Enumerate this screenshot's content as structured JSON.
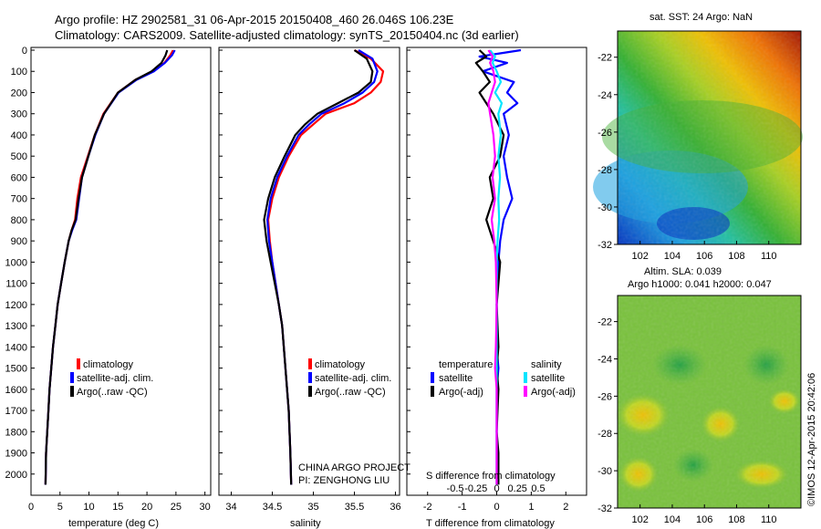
{
  "title_line1": "Argo profile: HZ 2902581_31 06-Apr-2015 20150408_460 26.046S 106.23E",
  "title_line2": "Climatology: CARS2009. Satellite-adjusted climatology: synTS_20150404.nc (3d earlier)",
  "depth_ticks": [
    0,
    100,
    200,
    300,
    400,
    500,
    600,
    700,
    800,
    900,
    1000,
    1100,
    1200,
    1300,
    1400,
    1500,
    1600,
    1700,
    1800,
    1900,
    2000
  ],
  "colors": {
    "climatology": "#ff0000",
    "satellite": "#0000ff",
    "argo": "#000000",
    "sat_sal": "#00e5ff",
    "argo_sal": "#ff00ff"
  },
  "panel1": {
    "xlabel": "temperature (deg C)",
    "xticks": [
      0,
      5,
      10,
      15,
      20,
      25,
      30
    ],
    "legend": [
      "climatology",
      "satellite-adj. clim.",
      "Argo(..raw -QC)"
    ]
  },
  "panel2": {
    "xlabel": "salinity",
    "xticks": [
      "34",
      "34.5",
      "35",
      "35.5",
      "36"
    ],
    "legend": [
      "climatology",
      "satellite-adj. clim.",
      "Argo(..raw -QC)"
    ],
    "annotation1": "CHINA ARGO PROJECT",
    "annotation2": "PI: ZENGHONG LIU"
  },
  "panel3": {
    "xlabel": "T difference from climatology",
    "xticks": [
      "-2",
      "-1",
      "0",
      "1",
      "2"
    ],
    "s_label": "S difference from climatology",
    "s_ticks": [
      "-0.5",
      "-0.25",
      "0",
      "0.25",
      "0.5"
    ],
    "legend_temp_title": "temperature",
    "legend_sal_title": "salinity",
    "legend_items": [
      "satellite",
      "Argo(-adj)",
      "satellite",
      "Argo(-adj)"
    ]
  },
  "map1": {
    "title": "sat. SST: 24 Argo: NaN",
    "yticks": [
      "-22",
      "-24",
      "-26",
      "-28",
      "-30",
      "-32"
    ],
    "xticks": [
      "102",
      "104",
      "106",
      "108",
      "110"
    ]
  },
  "map2": {
    "title1": "Altim. SLA: 0.039",
    "title2": "Argo h1000: 0.041 h2000: 0.047",
    "yticks": [
      "-22",
      "-24",
      "-26",
      "-28",
      "-30",
      "-32"
    ],
    "xticks": [
      "102",
      "104",
      "106",
      "108",
      "110"
    ]
  },
  "credit": "©IMOS 12-Apr-2015 20:42:06",
  "chart_data": [
    {
      "type": "line",
      "xlabel": "temperature (deg C)",
      "xlim": [
        0,
        31
      ],
      "ylim": [
        2100,
        0
      ],
      "series": [
        {
          "name": "climatology",
          "color": "#ff0000",
          "x": [
            24.5,
            24,
            23,
            21,
            18,
            15,
            12.5,
            11,
            9.8,
            8.6,
            8,
            7.6,
            7,
            6.5,
            5.8,
            5.2,
            4.6,
            4.2,
            3.8,
            3.5,
            3.2,
            3,
            2.8,
            2.6,
            2.5
          ],
          "y": [
            0,
            25,
            60,
            100,
            140,
            200,
            300,
            400,
            500,
            600,
            700,
            800,
            850,
            900,
            1000,
            1100,
            1200,
            1300,
            1400,
            1500,
            1600,
            1700,
            1800,
            1900,
            2050
          ]
        },
        {
          "name": "satellite-adj. clim.",
          "color": "#0000ff",
          "x": [
            24.8,
            24.3,
            23.1,
            21.2,
            18.2,
            15.1,
            12.6,
            11.1,
            9.9,
            8.8,
            8.3,
            7.8,
            7.1,
            6.5,
            5.8,
            5.2,
            4.6,
            4.2,
            3.8,
            3.5,
            3.2,
            3,
            2.8,
            2.6,
            2.5
          ],
          "y": [
            0,
            25,
            60,
            100,
            140,
            200,
            300,
            400,
            500,
            600,
            700,
            800,
            850,
            900,
            1000,
            1100,
            1200,
            1300,
            1400,
            1500,
            1600,
            1700,
            1800,
            1900,
            2050
          ]
        },
        {
          "name": "Argo(..raw -QC)",
          "color": "#000000",
          "x": [
            23.5,
            23.2,
            22.5,
            20.8,
            18,
            15,
            12.6,
            11,
            9.9,
            8.8,
            8.2,
            7.7,
            7,
            6.5,
            5.8,
            5.2,
            4.6,
            4.2,
            3.8,
            3.5,
            3.2,
            3,
            2.8,
            2.6,
            2.5
          ],
          "y": [
            0,
            25,
            60,
            100,
            140,
            200,
            300,
            400,
            500,
            600,
            700,
            800,
            850,
            900,
            1000,
            1100,
            1200,
            1300,
            1400,
            1500,
            1600,
            1700,
            1800,
            1900,
            2050
          ]
        }
      ]
    },
    {
      "type": "line",
      "xlabel": "salinity",
      "xlim": [
        33.85,
        36.05
      ],
      "ylim": [
        2100,
        0
      ],
      "series": [
        {
          "name": "climatology",
          "color": "#ff0000",
          "x": [
            35.5,
            35.7,
            35.85,
            35.82,
            35.7,
            35.5,
            35.15,
            35.0,
            34.85,
            34.7,
            34.58,
            34.5,
            34.45,
            34.47,
            34.5,
            34.54,
            34.58,
            34.62,
            34.64,
            34.66,
            34.68,
            34.7,
            34.71,
            34.72,
            34.73
          ],
          "y": [
            0,
            40,
            100,
            150,
            200,
            250,
            300,
            350,
            400,
            500,
            600,
            700,
            800,
            900,
            1000,
            1100,
            1200,
            1300,
            1400,
            1500,
            1600,
            1700,
            1800,
            1900,
            2050
          ]
        },
        {
          "name": "satellite-adj. clim.",
          "color": "#0000ff",
          "x": [
            35.55,
            35.72,
            35.78,
            35.74,
            35.6,
            35.38,
            35.1,
            34.95,
            34.82,
            34.68,
            34.56,
            34.48,
            34.44,
            34.46,
            34.5,
            34.54,
            34.58,
            34.62,
            34.64,
            34.66,
            34.68,
            34.7,
            34.71,
            34.72,
            34.73
          ],
          "y": [
            0,
            40,
            100,
            150,
            200,
            250,
            300,
            350,
            400,
            500,
            600,
            700,
            800,
            900,
            1000,
            1100,
            1200,
            1300,
            1400,
            1500,
            1600,
            1700,
            1800,
            1900,
            2050
          ]
        },
        {
          "name": "Argo(..raw -QC)",
          "color": "#000000",
          "x": [
            35.5,
            35.65,
            35.72,
            35.7,
            35.55,
            35.3,
            35.05,
            34.9,
            34.78,
            34.65,
            34.53,
            34.45,
            34.4,
            34.43,
            34.48,
            34.53,
            34.58,
            34.62,
            34.64,
            34.66,
            34.68,
            34.7,
            34.71,
            34.72,
            34.73
          ],
          "y": [
            0,
            40,
            100,
            150,
            200,
            250,
            300,
            350,
            400,
            500,
            600,
            700,
            800,
            900,
            1000,
            1100,
            1200,
            1300,
            1400,
            1500,
            1600,
            1700,
            1800,
            1900,
            2050
          ]
        }
      ]
    },
    {
      "type": "line",
      "xlabel": "T difference from climatology",
      "xlim": [
        -2.6,
        2.6
      ],
      "ylim": [
        2100,
        0
      ],
      "series": [
        {
          "name": "temperature satellite",
          "color": "#0000ff",
          "x": [
            0.7,
            -0.5,
            0.3,
            -0.4,
            0.5,
            0.3,
            0.6,
            0.2,
            0.35,
            0.2,
            0.3,
            0.45,
            0.2,
            0.1,
            0.05,
            0,
            0,
            0.05,
            0,
            0,
            0,
            0
          ],
          "y": [
            0,
            30,
            60,
            100,
            150,
            200,
            250,
            300,
            400,
            500,
            600,
            700,
            800,
            900,
            1000,
            1200,
            1400,
            1500,
            1600,
            1800,
            1900,
            2050
          ]
        },
        {
          "name": "temperature Argo(-adj)",
          "color": "#000000",
          "x": [
            -0.5,
            -0.3,
            -0.6,
            -0.4,
            -0.2,
            -0.5,
            -0.3,
            -0.1,
            0.2,
            0.1,
            -0.2,
            -0.1,
            -0.3,
            -0.1,
            0.1,
            0,
            0.05,
            0,
            0.05,
            0,
            0.05,
            0.05
          ],
          "y": [
            0,
            30,
            60,
            100,
            150,
            200,
            250,
            300,
            400,
            500,
            600,
            700,
            800,
            900,
            1000,
            1200,
            1400,
            1500,
            1600,
            1800,
            1900,
            2050
          ]
        },
        {
          "name": "salinity satellite",
          "color": "#00e5ff",
          "x": [
            -0.08,
            -0.02,
            -0.05,
            0,
            0.05,
            -0.02,
            0.06,
            0.02,
            0.05,
            0.02,
            0.04,
            0.02,
            0.03,
            0.01,
            0,
            0,
            0,
            0,
            0,
            0,
            0,
            0
          ],
          "y": [
            0,
            30,
            60,
            100,
            150,
            200,
            250,
            300,
            400,
            500,
            600,
            700,
            800,
            900,
            1000,
            1200,
            1400,
            1500,
            1600,
            1800,
            1900,
            2050
          ]
        },
        {
          "name": "salinity Argo(-adj)",
          "color": "#ff00ff",
          "x": [
            -0.1,
            -0.05,
            -0.08,
            -0.04,
            -0.02,
            -0.06,
            -0.1,
            -0.08,
            -0.04,
            -0.02,
            -0.05,
            -0.02,
            -0.06,
            -0.03,
            -0.01,
            0,
            -0.01,
            -0.02,
            0,
            0,
            0,
            0
          ],
          "y": [
            0,
            30,
            60,
            100,
            150,
            200,
            250,
            300,
            400,
            500,
            600,
            700,
            800,
            900,
            1000,
            1200,
            1400,
            1500,
            1600,
            1800,
            1900,
            2050
          ]
        }
      ]
    }
  ]
}
